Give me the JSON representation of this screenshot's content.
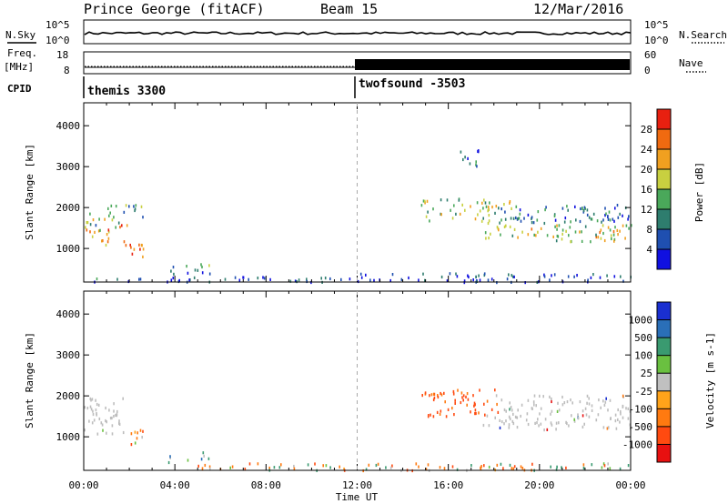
{
  "header": {
    "station": "Prince George (fitACF)",
    "beam": "Beam 15",
    "date": "12/Mar/2016"
  },
  "noise_panel": {
    "left_label": "N.Sky",
    "left_ticks": [
      "10^5",
      "10^0"
    ],
    "right_ticks": [
      "10^5",
      "10^0"
    ],
    "right_label": "N.Search"
  },
  "freq_panel": {
    "left_label_1": "Freq.",
    "left_label_2": "[MHz]",
    "left_ticks": [
      "18",
      "8"
    ],
    "right_ticks": [
      "60",
      "0"
    ],
    "right_label": "Nave"
  },
  "cpid_panel": {
    "label": "CPID",
    "modes": [
      "themis 3300",
      "twofsound -3503"
    ]
  },
  "colors": {
    "power_scale": [
      "#1010e0",
      "#1f4fb0",
      "#2e7d6e",
      "#4aa85a",
      "#c8d040",
      "#f0a020",
      "#f06a10",
      "#e82010"
    ],
    "velocity_scale": [
      "#1a2fd0",
      "#2a6fb8",
      "#3a9a70",
      "#6ac040",
      "#c0c0c0",
      "#ffa31a",
      "#ff7a10",
      "#ff4a10",
      "#e81010"
    ],
    "ground_scatter": "#bdbdbd"
  },
  "chart_data": [
    {
      "type": "heatmap",
      "panel": "power",
      "xlabel": "Time UT",
      "ylabel": "Slant Range [km]",
      "x_ticks": [
        "00:00",
        "04:00",
        "08:00",
        "12:00",
        "16:00",
        "20:00",
        "00:00"
      ],
      "y_ticks": [
        "1000",
        "2000",
        "3000",
        "4000"
      ],
      "xlim_hours": [
        0,
        24
      ],
      "ylim_km": [
        180,
        4560
      ],
      "colorbar_label": "Power [dB]",
      "colorbar_ticks": [
        "4",
        "8",
        "12",
        "16",
        "20",
        "24",
        "28"
      ],
      "clim": [
        0,
        32
      ],
      "regions": [
        {
          "t": [
            0.0,
            1.9
          ],
          "r": [
            1100,
            1600
          ],
          "v": 22
        },
        {
          "t": [
            0.0,
            1.6
          ],
          "r": [
            1600,
            1900
          ],
          "v": 14
        },
        {
          "t": [
            1.0,
            2.7
          ],
          "r": [
            1800,
            2100
          ],
          "v": 10
        },
        {
          "t": [
            2.0,
            2.8
          ],
          "r": [
            750,
            1200
          ],
          "v": 27
        },
        {
          "t": [
            3.5,
            5.6
          ],
          "r": [
            400,
            650
          ],
          "v": 10
        },
        {
          "t": [
            0.0,
            12.0
          ],
          "r": [
            200,
            330
          ],
          "v": 6
        },
        {
          "t": [
            12.0,
            24.0
          ],
          "r": [
            200,
            420
          ],
          "v": 5
        },
        {
          "t": [
            14.8,
            18.8
          ],
          "r": [
            1650,
            2250
          ],
          "v": 16
        },
        {
          "t": [
            17.5,
            24.0
          ],
          "r": [
            1200,
            1600
          ],
          "v": 18
        },
        {
          "t": [
            18.0,
            24.0
          ],
          "r": [
            1650,
            2100
          ],
          "v": 9
        },
        {
          "t": [
            16.5,
            17.3
          ],
          "r": [
            3000,
            3500
          ],
          "v": 8
        }
      ]
    },
    {
      "type": "heatmap",
      "panel": "velocity",
      "xlabel": "Time UT",
      "ylabel": "Slant Range [km]",
      "x_ticks": [
        "00:00",
        "04:00",
        "08:00",
        "12:00",
        "16:00",
        "20:00",
        "00:00"
      ],
      "y_ticks": [
        "1000",
        "2000",
        "3000",
        "4000"
      ],
      "xlim_hours": [
        0,
        24
      ],
      "ylim_km": [
        180,
        4560
      ],
      "colorbar_label": "Velocity [m s-1]",
      "colorbar_ticks": [
        "1000",
        "500",
        "100",
        "25",
        "-25",
        "-100",
        "-500",
        "-1000"
      ],
      "regions": [
        {
          "t": [
            0.0,
            2.0
          ],
          "r": [
            1100,
            1700
          ],
          "v": 0,
          "ground": true
        },
        {
          "t": [
            0.0,
            1.8
          ],
          "r": [
            1700,
            2000
          ],
          "v": 0,
          "ground": true
        },
        {
          "t": [
            2.0,
            2.8
          ],
          "r": [
            750,
            1200
          ],
          "v": -150
        },
        {
          "t": [
            3.6,
            5.6
          ],
          "r": [
            400,
            650
          ],
          "v": 150
        },
        {
          "t": [
            14.8,
            18.2
          ],
          "r": [
            1500,
            2200
          ],
          "v": -400
        },
        {
          "t": [
            17.5,
            24.0
          ],
          "r": [
            1200,
            1600
          ],
          "v": 0,
          "ground": true
        },
        {
          "t": [
            18.0,
            24.0
          ],
          "r": [
            1650,
            2050
          ],
          "v": 0,
          "ground": true
        },
        {
          "t": [
            5.0,
            24.0
          ],
          "r": [
            200,
            380
          ],
          "v": -60
        }
      ]
    }
  ]
}
